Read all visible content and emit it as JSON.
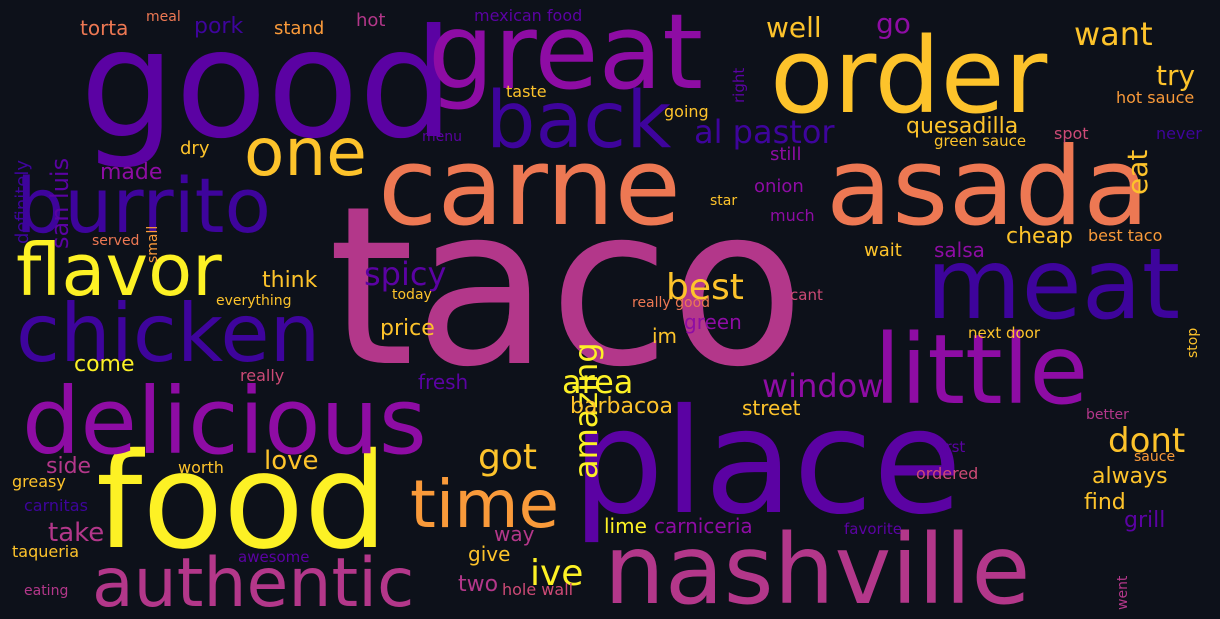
{
  "colors": {
    "background": "#0d111a",
    "palette": [
      "#fdf125",
      "#fdc32b",
      "#f99a3a",
      "#ed7853",
      "#cd4a76",
      "#b3378a",
      "#8e0ca4",
      "#7304a8",
      "#5b02a3",
      "#3e049c",
      "#1b0c8c",
      "#0d0887"
    ]
  },
  "words": [
    "taco",
    "place",
    "good",
    "carne",
    "asada",
    "great",
    "order",
    "nashville",
    "food",
    "delicious",
    "meat",
    "little",
    "chicken",
    "burrito",
    "back",
    "one",
    "flavor",
    "authentic",
    "time",
    "al pastor",
    "want",
    "spicy",
    "amazing",
    "best",
    "got",
    "window",
    "area",
    "dont",
    "ive",
    "quesadilla",
    "well",
    "go",
    "try",
    "eat",
    "made",
    "cheap",
    "think",
    "come",
    "price",
    "love",
    "take",
    "side",
    "barbacoa",
    "always",
    "find",
    "grill",
    "street",
    "salsa",
    "lime",
    "carniceria",
    "two",
    "give",
    "way",
    "fresh",
    "green",
    "im",
    "wait",
    "onion",
    "much",
    "still",
    "taste",
    "going",
    "hot sauce",
    "spot",
    "green sauce",
    "never",
    "torta",
    "meal",
    "stand",
    "hot",
    "mexican food",
    "right",
    "pork",
    "san luis",
    "definitely",
    "dry",
    "menu",
    "small",
    "served",
    "everything",
    "today",
    "really good",
    "cant",
    "star",
    "best taco",
    "stop",
    "next door",
    "really",
    "better",
    "first",
    "sauce",
    "ordered",
    "favorite",
    "went",
    "worth",
    "greasy",
    "carnitas",
    "taqueria",
    "awesome",
    "eating",
    "hole wall"
  ]
}
